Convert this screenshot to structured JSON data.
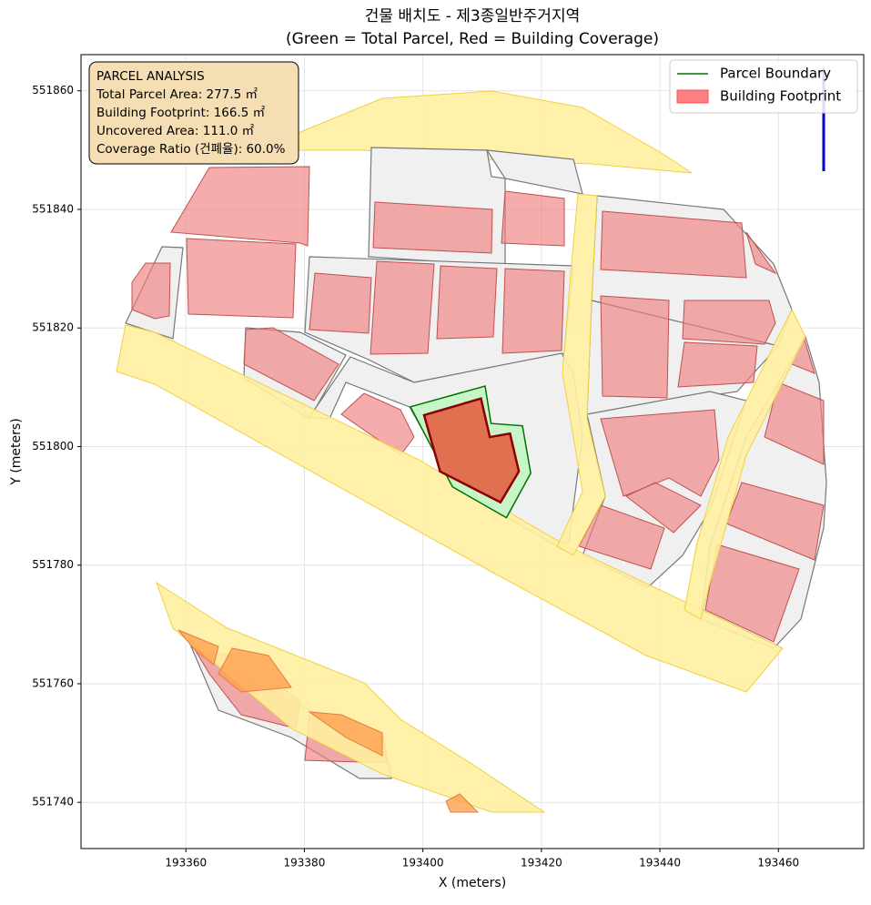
{
  "chart_data": {
    "type": "map",
    "title": "건물 배치도 - 제3종일반주거지역",
    "subtitle": "(Green = Total Parcel, Red = Building Coverage)",
    "x_label": "X (meters)",
    "y_label": "Y (meters)",
    "xlim": [
      193342.3,
      193474.4
    ],
    "ylim": [
      551732.2,
      551866.1
    ],
    "xticks": [
      193360,
      193380,
      193400,
      193420,
      193440,
      193460
    ],
    "yticks": [
      551740,
      551760,
      551780,
      551800,
      551820,
      551840,
      551860
    ],
    "grid": true,
    "legend": "upper right",
    "annotation": [
      "PARCEL ANALYSIS",
      "Total Parcel Area: 277.5 ㎡",
      "Building Footprint: 166.5 ㎡",
      "Uncovered Area: 111.0 ㎡",
      "Coverage Ratio (건폐율): 60.0%"
    ],
    "series": [
      {
        "name": "Parcel Boundary",
        "color": "#007000",
        "fill": "#c8f5c8",
        "x": [
          193397.9,
          193410.5,
          193411.5,
          193416.8,
          193418.2,
          193414.1,
          193405.0
        ],
        "y": [
          551806.7,
          551810.2,
          551803.9,
          551803.5,
          551795.5,
          551788.0,
          551793.2
        ]
      },
      {
        "name": "Building Footprint",
        "color": "#ff8080",
        "edge": "#8b0000",
        "fill": "#e07050",
        "x": [
          193400.2,
          193409.8,
          193411.3,
          193414.7,
          193416.2,
          193413.1,
          193402.9
        ],
        "y": [
          551805.3,
          551808.1,
          551801.6,
          551802.2,
          551795.8,
          551790.6,
          551795.8
        ]
      }
    ]
  }
}
